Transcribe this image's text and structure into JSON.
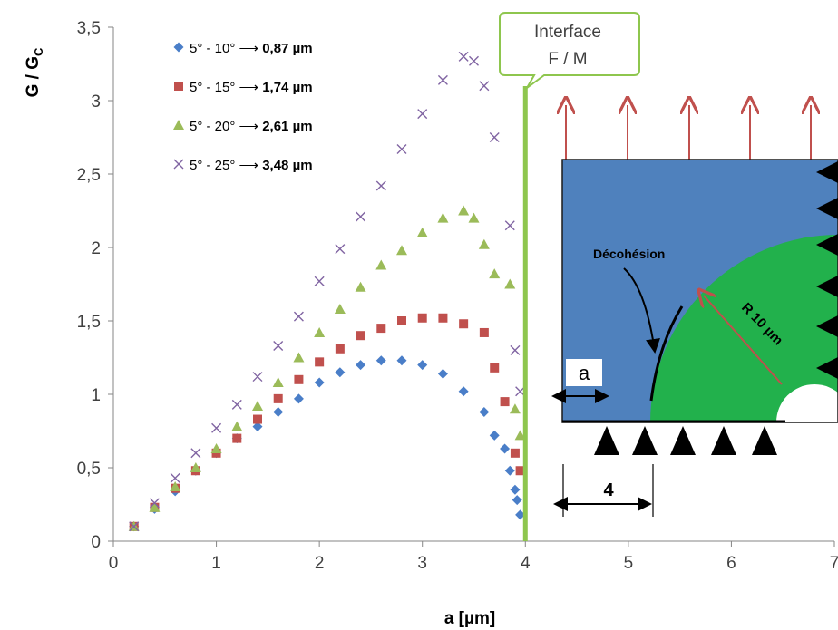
{
  "chart_data": {
    "type": "scatter",
    "xlabel": "a [µm]",
    "ylabel_main": "G / G",
    "ylabel_sub": "C",
    "xlim": [
      0,
      7
    ],
    "ylim": [
      0,
      3.5
    ],
    "xticks": [
      "0",
      "1",
      "2",
      "3",
      "4",
      "5",
      "6",
      "7"
    ],
    "yticks": [
      "0",
      "0,5",
      "1",
      "1,5",
      "2",
      "2,5",
      "3",
      "3,5"
    ],
    "legend_position": "top-left",
    "series": [
      {
        "name_prefix": "5° - 10° ⟶ ",
        "name_value": "0,87 µm",
        "marker": "diamond",
        "color": "#4a7ec8",
        "x": [
          0.2,
          0.4,
          0.6,
          0.8,
          1.0,
          1.2,
          1.4,
          1.6,
          1.8,
          2.0,
          2.2,
          2.4,
          2.6,
          2.8,
          3.0,
          3.2,
          3.4,
          3.6,
          3.7,
          3.8,
          3.85,
          3.9,
          3.92,
          3.95
        ],
        "y": [
          0.1,
          0.22,
          0.34,
          0.48,
          0.6,
          0.7,
          0.78,
          0.88,
          0.97,
          1.08,
          1.15,
          1.2,
          1.23,
          1.23,
          1.2,
          1.14,
          1.02,
          0.88,
          0.72,
          0.63,
          0.48,
          0.35,
          0.28,
          0.18
        ]
      },
      {
        "name_prefix": "5° - 15° ⟶ ",
        "name_value": "1,74 µm",
        "marker": "square",
        "color": "#c0504d",
        "x": [
          0.2,
          0.4,
          0.6,
          0.8,
          1.0,
          1.2,
          1.4,
          1.6,
          1.8,
          2.0,
          2.2,
          2.4,
          2.6,
          2.8,
          3.0,
          3.2,
          3.4,
          3.6,
          3.7,
          3.8,
          3.9,
          3.95
        ],
        "y": [
          0.1,
          0.23,
          0.36,
          0.48,
          0.6,
          0.7,
          0.83,
          0.97,
          1.1,
          1.22,
          1.31,
          1.4,
          1.45,
          1.5,
          1.52,
          1.52,
          1.48,
          1.42,
          1.18,
          0.95,
          0.6,
          0.48
        ]
      },
      {
        "name_prefix": "5° - 20° ⟶ ",
        "name_value": "2,61 µm",
        "marker": "triangle",
        "color": "#9bbb59",
        "x": [
          0.2,
          0.4,
          0.6,
          0.8,
          1.0,
          1.2,
          1.4,
          1.6,
          1.8,
          2.0,
          2.2,
          2.4,
          2.6,
          2.8,
          3.0,
          3.2,
          3.4,
          3.5,
          3.6,
          3.7,
          3.85,
          3.9,
          3.95
        ],
        "y": [
          0.1,
          0.23,
          0.37,
          0.5,
          0.63,
          0.78,
          0.92,
          1.08,
          1.25,
          1.42,
          1.58,
          1.73,
          1.88,
          1.98,
          2.1,
          2.2,
          2.25,
          2.2,
          2.02,
          1.82,
          1.75,
          0.9,
          0.72
        ]
      },
      {
        "name_prefix": "5° - 25° ⟶ ",
        "name_value": "3,48 µm",
        "marker": "x",
        "color": "#8064a2",
        "x": [
          0.2,
          0.4,
          0.6,
          0.8,
          1.0,
          1.2,
          1.4,
          1.6,
          1.8,
          2.0,
          2.2,
          2.4,
          2.6,
          2.8,
          3.0,
          3.2,
          3.4,
          3.5,
          3.6,
          3.7,
          3.85,
          3.9,
          3.95
        ],
        "y": [
          0.1,
          0.26,
          0.43,
          0.6,
          0.77,
          0.93,
          1.12,
          1.33,
          1.53,
          1.77,
          1.99,
          2.21,
          2.42,
          2.67,
          2.91,
          3.14,
          3.3,
          3.27,
          3.1,
          2.75,
          2.15,
          1.3,
          1.02
        ]
      }
    ],
    "interface_line": {
      "x": 4,
      "label_line1": "Interface",
      "label_line2": "F / M",
      "color": "#8ec64e"
    }
  },
  "inset": {
    "decohesion_label": "Décohésion",
    "radius_label": "R 10 µm",
    "a_label": "a",
    "four_label": "4",
    "matrix_color": "#4f81bd",
    "fiber_color": "#22b14c",
    "arrow_color": "#c0504d"
  }
}
